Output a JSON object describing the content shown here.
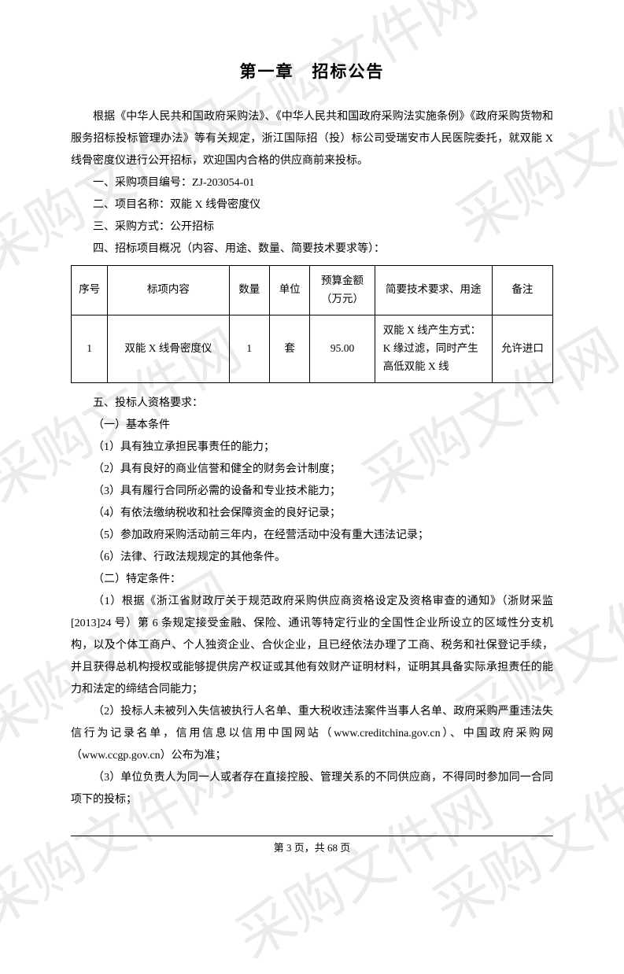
{
  "watermark_text": "采购文件网",
  "title": "第一章　招标公告",
  "intro": "根据《中华人民共和国政府采购法》、《中华人民共和国政府采购法实施条例》《政府采购货物和服务招标投标管理办法》等有关规定，浙江国际招（投）标公司受瑞安市人民医院委托，就双能 X 线骨密度仪进行公开招标，欢迎国内合格的供应商前来投标。",
  "item1": "一、采购项目编号：ZJ-203054-01",
  "item2": "二、项目名称：双能 X 线骨密度仪",
  "item3": "三、采购方式：公开招标",
  "item4": "四、招标项目概况（内容、用途、数量、简要技术要求等）：",
  "table": {
    "headers": {
      "seq": "序号",
      "content": "标项内容",
      "qty": "数量",
      "unit": "单位",
      "budget": "预算金额（万元）",
      "req": "简要技术要求、用途",
      "note": "备注"
    },
    "rows": [
      {
        "seq": "1",
        "content": "双能 X 线骨密度仪",
        "qty": "1",
        "unit": "套",
        "budget": "95.00",
        "req": "双能 X 线产生方式：K 缘过滤，同时产生高低双能 X 线",
        "note": "允许进口"
      }
    ]
  },
  "item5": "五、投标人资格要求：",
  "item5_1": "（一）基本条件",
  "item5_1_1": "（1）具有独立承担民事责任的能力；",
  "item5_1_2": "（2）具有良好的商业信誉和健全的财务会计制度；",
  "item5_1_3": "（3）具有履行合同所必需的设备和专业技术能力；",
  "item5_1_4": "（4）有依法缴纳税收和社会保障资金的良好记录；",
  "item5_1_5": "（5）参加政府采购活动前三年内，在经营活动中没有重大违法记录；",
  "item5_1_6": "（6）法律、行政法规规定的其他条件。",
  "item5_2": "（二）特定条件：",
  "item5_2_1": "（1）根据《浙江省财政厅关于规范政府采购供应商资格设定及资格审查的通知》（浙财采监[2013]24 号）第 6 条规定接受金融、保险、通讯等特定行业的全国性企业所设立的区域性分支机构，以及个体工商户、个人独资企业、合伙企业，且已经依法办理了工商、税务和社保登记手续，并且获得总机构授权或能够提供房产权证或其他有效财产证明材料，证明其具备实际承担责任的能力和法定的缔结合同能力；",
  "item5_2_2": "（2）投标人未被列入失信被执行人名单、重大税收违法案件当事人名单、政府采购严重违法失信行为记录名单，信用信息以信用中国网站（www.creditchina.gov.cn）、中国政府采购网（www.ccgp.gov.cn）公布为准；",
  "item5_2_3": "（3）单位负责人为同一人或者存在直接控股、管理关系的不同供应商，不得同时参加同一合同项下的投标；",
  "footer": "第 3 页，共 68 页"
}
